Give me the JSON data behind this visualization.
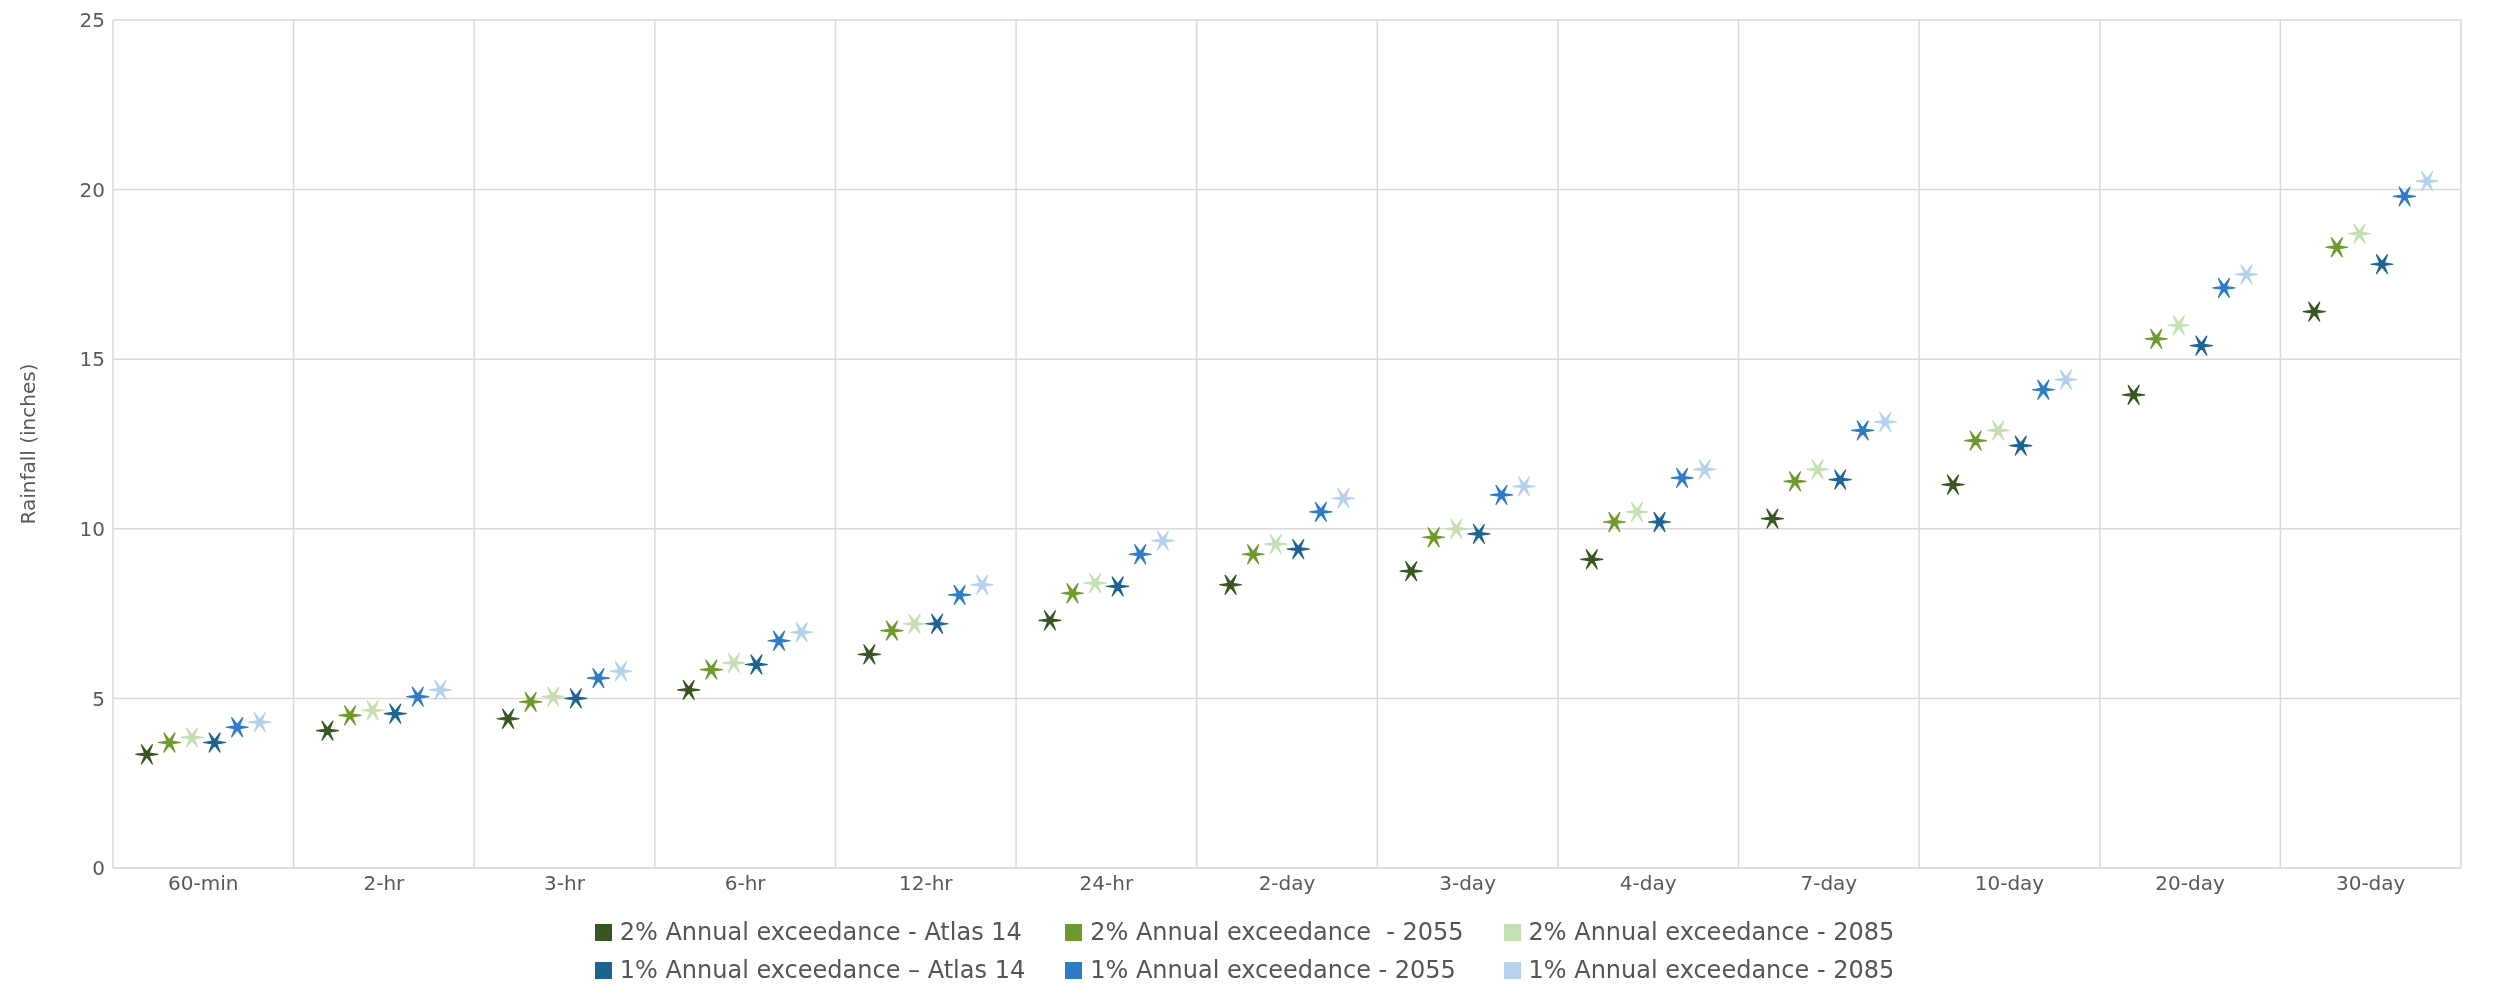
{
  "chart_data": {
    "type": "scatter",
    "ylabel": "Rainfall (inches)",
    "categories": [
      "60-min",
      "2-hr",
      "3-hr",
      "6-hr",
      "12-hr",
      "24-hr",
      "2-day",
      "3-day",
      "4-day",
      "7-day",
      "10-day",
      "20-day",
      "30-day"
    ],
    "ylim": [
      0,
      25
    ],
    "yticks": [
      0,
      5,
      10,
      15,
      20,
      25
    ],
    "grid": true,
    "legend": "bottom",
    "marker": "cross",
    "series": [
      {
        "name": "2% Annual exceedance - Atlas 14",
        "color": "#375623",
        "values": [
          3.35,
          4.05,
          4.4,
          5.25,
          6.3,
          7.3,
          8.35,
          8.75,
          9.1,
          10.3,
          11.3,
          13.95,
          16.4
        ]
      },
      {
        "name": "2% Annual exceedance  - 2055",
        "color": "#6e9a2c",
        "values": [
          3.7,
          4.5,
          4.9,
          5.85,
          7.0,
          8.1,
          9.25,
          9.75,
          10.2,
          11.4,
          12.6,
          15.6,
          18.3
        ]
      },
      {
        "name": "2% Annual exceedance - 2085",
        "color": "#c4e0b2",
        "values": [
          3.85,
          4.65,
          5.05,
          6.05,
          7.2,
          8.4,
          9.55,
          10.0,
          10.5,
          11.75,
          12.9,
          16.0,
          18.7
        ]
      },
      {
        "name": "1% Annual exceedance – Atlas 14",
        "color": "#1f6391",
        "values": [
          3.7,
          4.55,
          5.0,
          6.0,
          7.2,
          8.3,
          9.4,
          9.85,
          10.2,
          11.45,
          12.45,
          15.4,
          17.8
        ]
      },
      {
        "name": "1% Annual exceedance - 2055",
        "color": "#2e7bc6",
        "values": [
          4.15,
          5.05,
          5.6,
          6.7,
          8.05,
          9.25,
          10.5,
          11.0,
          11.5,
          12.9,
          14.1,
          17.1,
          19.8
        ]
      },
      {
        "name": "1% Annual exceedance - 2085",
        "color": "#b5d1ee",
        "values": [
          4.3,
          5.25,
          5.8,
          6.95,
          8.35,
          9.65,
          10.9,
          11.25,
          11.75,
          13.15,
          14.4,
          17.5,
          20.25
        ]
      }
    ]
  }
}
